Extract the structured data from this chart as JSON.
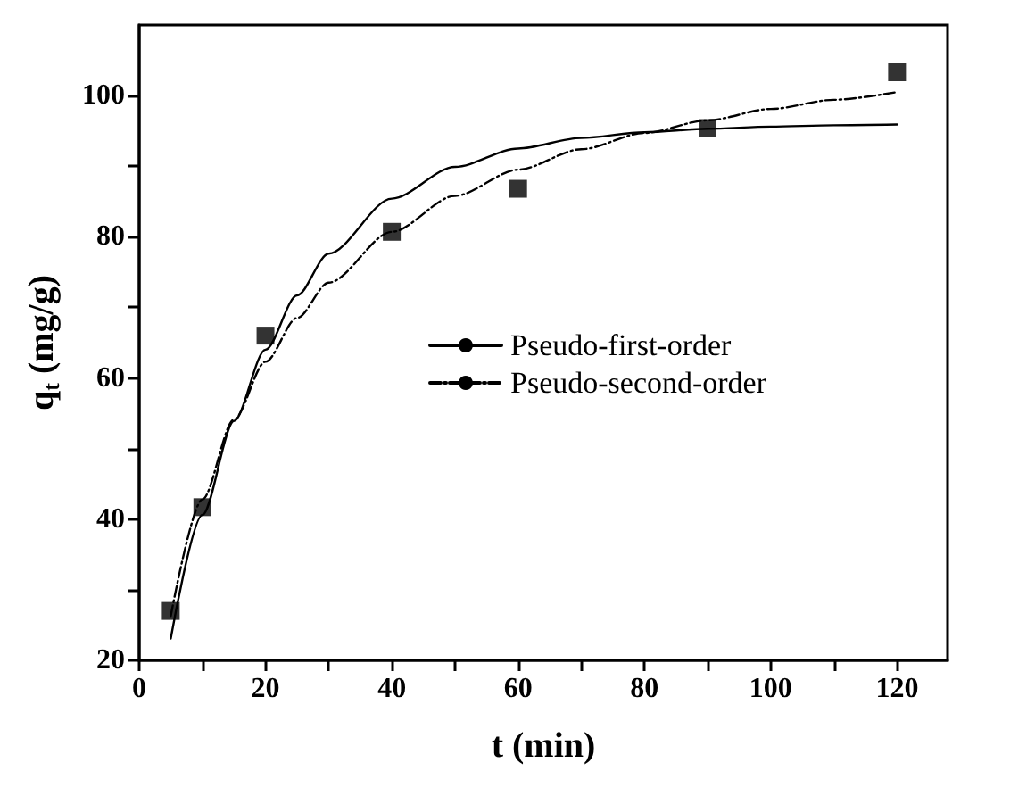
{
  "chart_data": {
    "type": "scatter",
    "xlabel": "t (min)",
    "ylabel": "q$_{t}$ (mg/g)",
    "xlim": [
      0,
      128
    ],
    "ylim": [
      20,
      110
    ],
    "xticks": [
      0,
      {
        "value": 10,
        "label": null
      },
      20,
      {
        "value": 30,
        "label": null
      },
      40,
      {
        "value": 50,
        "label": null
      },
      60,
      {
        "value": 70,
        "label": null
      },
      80,
      {
        "value": 90,
        "label": null
      },
      100,
      {
        "value": 110,
        "label": null
      },
      120
    ],
    "yticks": [
      20,
      {
        "value": 30,
        "label": null
      },
      40,
      {
        "value": 50,
        "label": null
      },
      60,
      {
        "value": 70,
        "label": null
      },
      80,
      {
        "value": 90,
        "label": null
      },
      100
    ],
    "grid": false,
    "legend": "center",
    "series": [
      {
        "marker": "square",
        "color": "#000000",
        "x": [
          5,
          10,
          20,
          40,
          60,
          90,
          120
        ],
        "values": [
          27,
          41.7,
          66,
          80.7,
          86.8,
          95.4,
          103.3
        ]
      },
      {
        "type": "line",
        "name": "Pseudo-first-order",
        "marker": "none",
        "line_style": "solid",
        "color": "#000000",
        "x": [
          5,
          10,
          15,
          20,
          25,
          30,
          40,
          50,
          60,
          70,
          80,
          90,
          100,
          110,
          120
        ],
        "values": [
          23.1,
          40.6,
          53.9,
          64.0,
          71.7,
          77.6,
          85.4,
          89.9,
          92.5,
          94.0,
          94.8,
          95.3,
          95.6,
          95.8,
          95.9
        ]
      },
      {
        "type": "line",
        "name": "Pseudo-second-order",
        "marker": "none",
        "line_style": "dashed",
        "color": "#000000",
        "x": [
          5,
          10,
          15,
          20,
          25,
          30,
          40,
          50,
          60,
          70,
          80,
          90,
          100,
          110,
          120
        ],
        "values": [
          26.3,
          42.8,
          54.1,
          62.3,
          68.5,
          73.5,
          80.7,
          85.8,
          89.5,
          92.4,
          94.7,
          96.5,
          98.1,
          99.4,
          100.5
        ]
      }
    ]
  }
}
